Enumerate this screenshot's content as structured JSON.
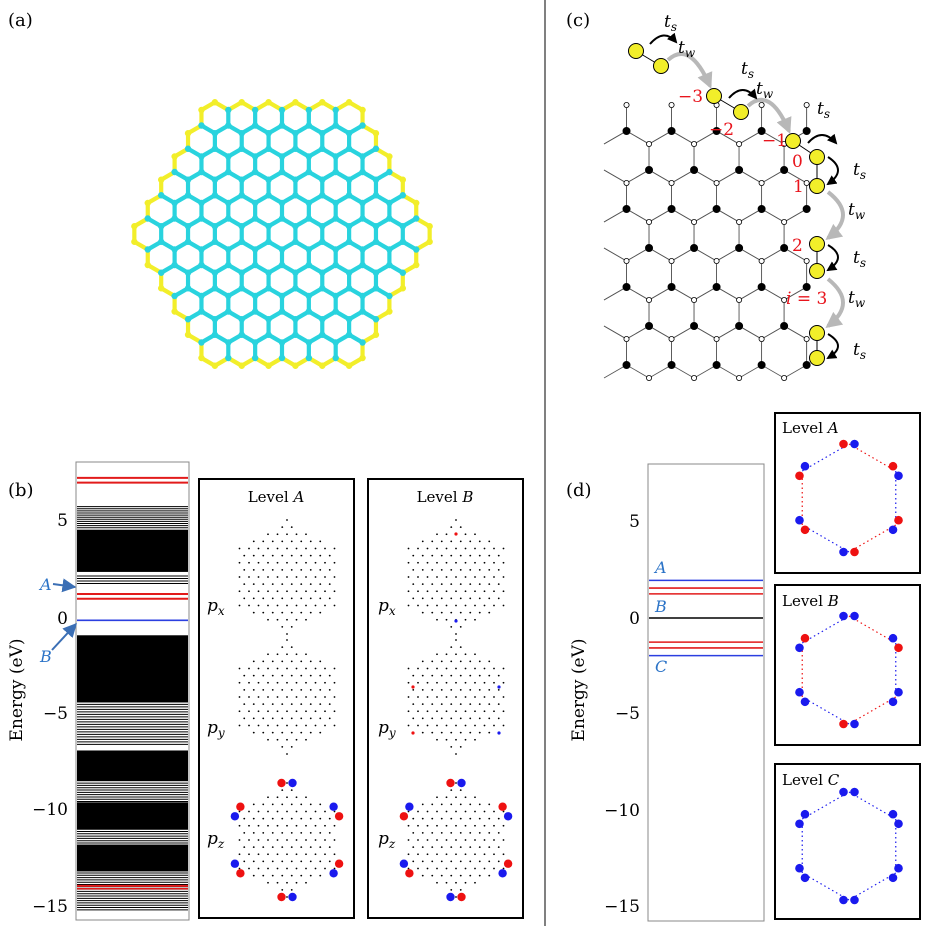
{
  "panels": {
    "a": "(a)",
    "b": "(b)",
    "c": "(c)",
    "d": "(d)"
  },
  "colors": {
    "bulk_atom": "#29d3de",
    "edge_atom": "#f2ee2a",
    "level_black": "#000000",
    "level_red": "#e21b1b",
    "level_blue": "#2b3fe0",
    "label_blue": "#2b73c7",
    "index_red": "#e8141c",
    "arrow_gray": "#b8b8b8",
    "orb_red": "#ee1111",
    "orb_blue": "#1a1aee"
  },
  "panel_b": {
    "ylabel": "Energy (eV)",
    "ticks": [
      "5",
      "0",
      "−5",
      "−10",
      "−15"
    ],
    "arrow_A": "A",
    "arrow_B": "B",
    "box1_title": "Level",
    "box1_letter": "A",
    "box2_title": "Level",
    "box2_letter": "B",
    "orbitals": [
      "p",
      "p",
      "p"
    ],
    "orbital_subs": [
      "x",
      "y",
      "z"
    ]
  },
  "panel_c": {
    "ts": "t",
    "ts_sub": "s",
    "tw": "t",
    "tw_sub": "w",
    "indices": [
      "−3",
      "−2",
      "−1",
      "0",
      "1",
      "2"
    ],
    "i3_italic": "i",
    "i3_rest": " = 3"
  },
  "panel_d": {
    "ylabel": "Energy (eV)",
    "ticks": [
      "5",
      "0",
      "−5",
      "−10",
      "−15"
    ],
    "labels": [
      "A",
      "B",
      "C"
    ],
    "box_titles": [
      "Level",
      "Level",
      "Level"
    ],
    "box_letters": [
      "A",
      "B",
      "C"
    ]
  }
}
